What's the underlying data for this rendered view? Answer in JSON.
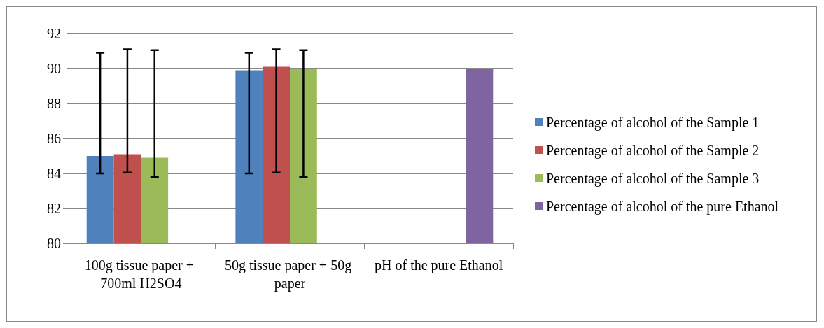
{
  "chart_data": {
    "type": "bar",
    "categories": [
      "100g tissue paper + 700ml H2SO4",
      "50g tissue paper + 50g paper",
      "pH of the pure Ethanol"
    ],
    "series": [
      {
        "name": "Percentage of alcohol of the Sample 1",
        "color": "#4f81bd",
        "values": [
          85.0,
          89.9,
          null
        ],
        "errors": [
          [
            84.0,
            90.9
          ],
          [
            84.0,
            90.9
          ],
          null
        ]
      },
      {
        "name": "Percentage of alcohol of the Sample 2",
        "color": "#c0504d",
        "values": [
          85.1,
          90.1,
          null
        ],
        "errors": [
          [
            84.05,
            91.1
          ],
          [
            84.05,
            91.1
          ],
          null
        ]
      },
      {
        "name": "Percentage of alcohol of the Sample 3",
        "color": "#9bbb59",
        "values": [
          84.9,
          90.0,
          null
        ],
        "errors": [
          [
            83.8,
            91.05
          ],
          [
            83.8,
            91.05
          ],
          null
        ]
      },
      {
        "name": "Percentage of alcohol of the pure Ethanol",
        "color": "#8064a2",
        "values": [
          null,
          null,
          90.0
        ]
      }
    ],
    "ylim": [
      80,
      92
    ],
    "yticks": [
      80,
      82,
      84,
      86,
      88,
      90,
      92
    ],
    "grid": "y",
    "legend": "right"
  }
}
